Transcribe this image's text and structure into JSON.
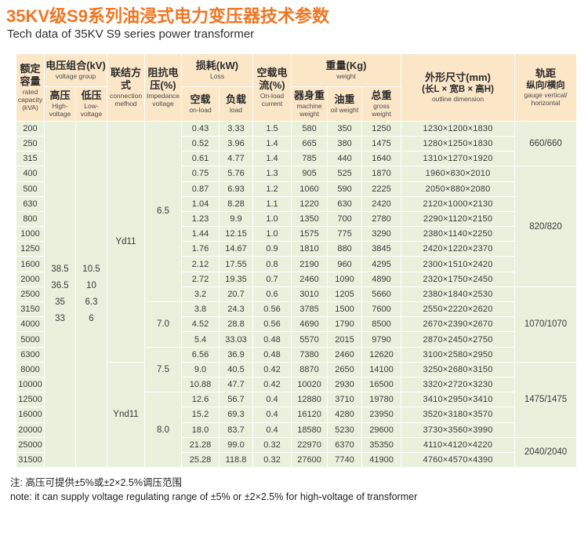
{
  "title": {
    "zh": "35KV级S9系列油浸式电力变压器技术参数",
    "en": "Tech data of 35KV S9 series power transformer"
  },
  "note": {
    "zh": "注: 高压可提供±5%或±2×2.5%调压范围",
    "en": "note: it can supply voltage regulating range of ±5% or ±2×2.5% for high-voltage of transformer"
  },
  "colors": {
    "title_orange": "#ee7623",
    "header_bg": "#fbe6c8",
    "row_bg": "#e9f1dd",
    "border": "#ffffff"
  },
  "header": {
    "capacity": {
      "zh": "额定容量",
      "en": "rated capacity (kVA)"
    },
    "voltage_group": {
      "zh": "电压组合(kV)",
      "en": "voltage group"
    },
    "hv": {
      "zh": "高压",
      "en": "High-voltage"
    },
    "lv": {
      "zh": "低压",
      "en": "Low-voltage"
    },
    "connection": {
      "zh": "联结方式",
      "en": "connection mefhod"
    },
    "impedance": {
      "zh": "阻抗电压(%)",
      "en": "Impedance voltage"
    },
    "loss": {
      "zh": "损耗(kW)",
      "en": "Loss"
    },
    "noload_loss": {
      "zh": "空载",
      "en": "on-load"
    },
    "load_loss": {
      "zh": "负载",
      "en": "load"
    },
    "current": {
      "zh": "空载电流(%)",
      "en": "On-load current"
    },
    "weight": {
      "zh": "重量(Kg)",
      "en": "weight"
    },
    "machine_weight": {
      "zh": "器身重",
      "en": "machine weight"
    },
    "oil_weight": {
      "zh": "油重",
      "en": "oil weight"
    },
    "gross_weight": {
      "zh": "总重",
      "en": "gross weight"
    },
    "dimension": {
      "zh": "外形尺寸(mm)",
      "zh2": "(长L × 宽B × 高H)",
      "en": "outline dimension"
    },
    "gauge": {
      "zh": "轨距",
      "zh2": "纵向/横向",
      "en": "gauge vertical/ horizontal"
    }
  },
  "merged": {
    "hv_values": "38.5\n36.5\n35\n33",
    "lv_values": "10.5\n10\n6.3\n6",
    "connection": [
      {
        "start": 0,
        "span": 16,
        "label": "Yd11"
      },
      {
        "start": 16,
        "span": 7,
        "label": "Ynd11"
      }
    ],
    "impedance": [
      {
        "start": 0,
        "span": 12,
        "label": "6.5"
      },
      {
        "start": 12,
        "span": 3,
        "label": "7.0"
      },
      {
        "start": 15,
        "span": 3,
        "label": "7.5"
      },
      {
        "start": 18,
        "span": 5,
        "label": "8.0"
      }
    ],
    "gauge": [
      {
        "start": 0,
        "span": 3,
        "label": "660/660"
      },
      {
        "start": 3,
        "span": 8,
        "label": "820/820"
      },
      {
        "start": 11,
        "span": 5,
        "label": "1070/1070"
      },
      {
        "start": 16,
        "span": 5,
        "label": "1475/1475"
      },
      {
        "start": 21,
        "span": 2,
        "label": "2040/2040"
      }
    ]
  },
  "rows": [
    {
      "capacity": "200",
      "noload_loss": "0.43",
      "load_loss": "3.33",
      "current": "1.5",
      "machine_weight": "580",
      "oil_weight": "350",
      "gross_weight": "1250",
      "dimension": "1230×1200×1830"
    },
    {
      "capacity": "250",
      "noload_loss": "0.52",
      "load_loss": "3.96",
      "current": "1.4",
      "machine_weight": "665",
      "oil_weight": "380",
      "gross_weight": "1475",
      "dimension": "1280×1250×1830"
    },
    {
      "capacity": "315",
      "noload_loss": "0.61",
      "load_loss": "4.77",
      "current": "1.4",
      "machine_weight": "785",
      "oil_weight": "440",
      "gross_weight": "1640",
      "dimension": "1310×1270×1920"
    },
    {
      "capacity": "400",
      "noload_loss": "0.75",
      "load_loss": "5.76",
      "current": "1.3",
      "machine_weight": "905",
      "oil_weight": "525",
      "gross_weight": "1870",
      "dimension": "1960×830×2010"
    },
    {
      "capacity": "500",
      "noload_loss": "0.87",
      "load_loss": "6.93",
      "current": "1.2",
      "machine_weight": "1060",
      "oil_weight": "590",
      "gross_weight": "2225",
      "dimension": "2050×880×2080"
    },
    {
      "capacity": "630",
      "noload_loss": "1.04",
      "load_loss": "8.28",
      "current": "1.1",
      "machine_weight": "1220",
      "oil_weight": "630",
      "gross_weight": "2420",
      "dimension": "2120×1000×2130"
    },
    {
      "capacity": "800",
      "noload_loss": "1.23",
      "load_loss": "9.9",
      "current": "1.0",
      "machine_weight": "1350",
      "oil_weight": "700",
      "gross_weight": "2780",
      "dimension": "2290×1120×2150"
    },
    {
      "capacity": "1000",
      "noload_loss": "1.44",
      "load_loss": "12.15",
      "current": "1.0",
      "machine_weight": "1575",
      "oil_weight": "775",
      "gross_weight": "3290",
      "dimension": "2380×1140×2250"
    },
    {
      "capacity": "1250",
      "noload_loss": "1.76",
      "load_loss": "14.67",
      "current": "0.9",
      "machine_weight": "1810",
      "oil_weight": "880",
      "gross_weight": "3845",
      "dimension": "2420×1220×2370"
    },
    {
      "capacity": "1600",
      "noload_loss": "2.12",
      "load_loss": "17.55",
      "current": "0.8",
      "machine_weight": "2190",
      "oil_weight": "960",
      "gross_weight": "4295",
      "dimension": "2300×1510×2420"
    },
    {
      "capacity": "2000",
      "noload_loss": "2.72",
      "load_loss": "19.35",
      "current": "0.7",
      "machine_weight": "2460",
      "oil_weight": "1090",
      "gross_weight": "4890",
      "dimension": "2320×1750×2450"
    },
    {
      "capacity": "2500",
      "noload_loss": "3.2",
      "load_loss": "20.7",
      "current": "0.6",
      "machine_weight": "3010",
      "oil_weight": "1205",
      "gross_weight": "5660",
      "dimension": "2380×1840×2530"
    },
    {
      "capacity": "3150",
      "noload_loss": "3.8",
      "load_loss": "24.3",
      "current": "0.56",
      "machine_weight": "3785",
      "oil_weight": "1500",
      "gross_weight": "7600",
      "dimension": "2550×2220×2620"
    },
    {
      "capacity": "4000",
      "noload_loss": "4.52",
      "load_loss": "28.8",
      "current": "0.56",
      "machine_weight": "4690",
      "oil_weight": "1790",
      "gross_weight": "8500",
      "dimension": "2670×2390×2670"
    },
    {
      "capacity": "5000",
      "noload_loss": "5.4",
      "load_loss": "33.03",
      "current": "0.48",
      "machine_weight": "5570",
      "oil_weight": "2015",
      "gross_weight": "9790",
      "dimension": "2870×2450×2750"
    },
    {
      "capacity": "6300",
      "noload_loss": "6.56",
      "load_loss": "36.9",
      "current": "0.48",
      "machine_weight": "7380",
      "oil_weight": "2460",
      "gross_weight": "12620",
      "dimension": "3100×2580×2950"
    },
    {
      "capacity": "8000",
      "noload_loss": "9.0",
      "load_loss": "40.5",
      "current": "0.42",
      "machine_weight": "8870",
      "oil_weight": "2650",
      "gross_weight": "14100",
      "dimension": "3250×2680×3150"
    },
    {
      "capacity": "10000",
      "noload_loss": "10.88",
      "load_loss": "47.7",
      "current": "0.42",
      "machine_weight": "10020",
      "oil_weight": "2930",
      "gross_weight": "16500",
      "dimension": "3320×2720×3230"
    },
    {
      "capacity": "12500",
      "noload_loss": "12.6",
      "load_loss": "56.7",
      "current": "0.4",
      "machine_weight": "12880",
      "oil_weight": "3710",
      "gross_weight": "19780",
      "dimension": "3410×2950×3410"
    },
    {
      "capacity": "16000",
      "noload_loss": "15.2",
      "load_loss": "69.3",
      "current": "0.4",
      "machine_weight": "16120",
      "oil_weight": "4280",
      "gross_weight": "23950",
      "dimension": "3520×3180×3570"
    },
    {
      "capacity": "20000",
      "noload_loss": "18.0",
      "load_loss": "83.7",
      "current": "0.4",
      "machine_weight": "18580",
      "oil_weight": "5230",
      "gross_weight": "29600",
      "dimension": "3730×3560×3990"
    },
    {
      "capacity": "25000",
      "noload_loss": "21.28",
      "load_loss": "99.0",
      "current": "0.32",
      "machine_weight": "22970",
      "oil_weight": "6370",
      "gross_weight": "35350",
      "dimension": "4110×4120×4220"
    },
    {
      "capacity": "31500",
      "noload_loss": "25.28",
      "load_loss": "118.8",
      "current": "0.32",
      "machine_weight": "27600",
      "oil_weight": "7740",
      "gross_weight": "41900",
      "dimension": "4760×4570×4390"
    }
  ]
}
